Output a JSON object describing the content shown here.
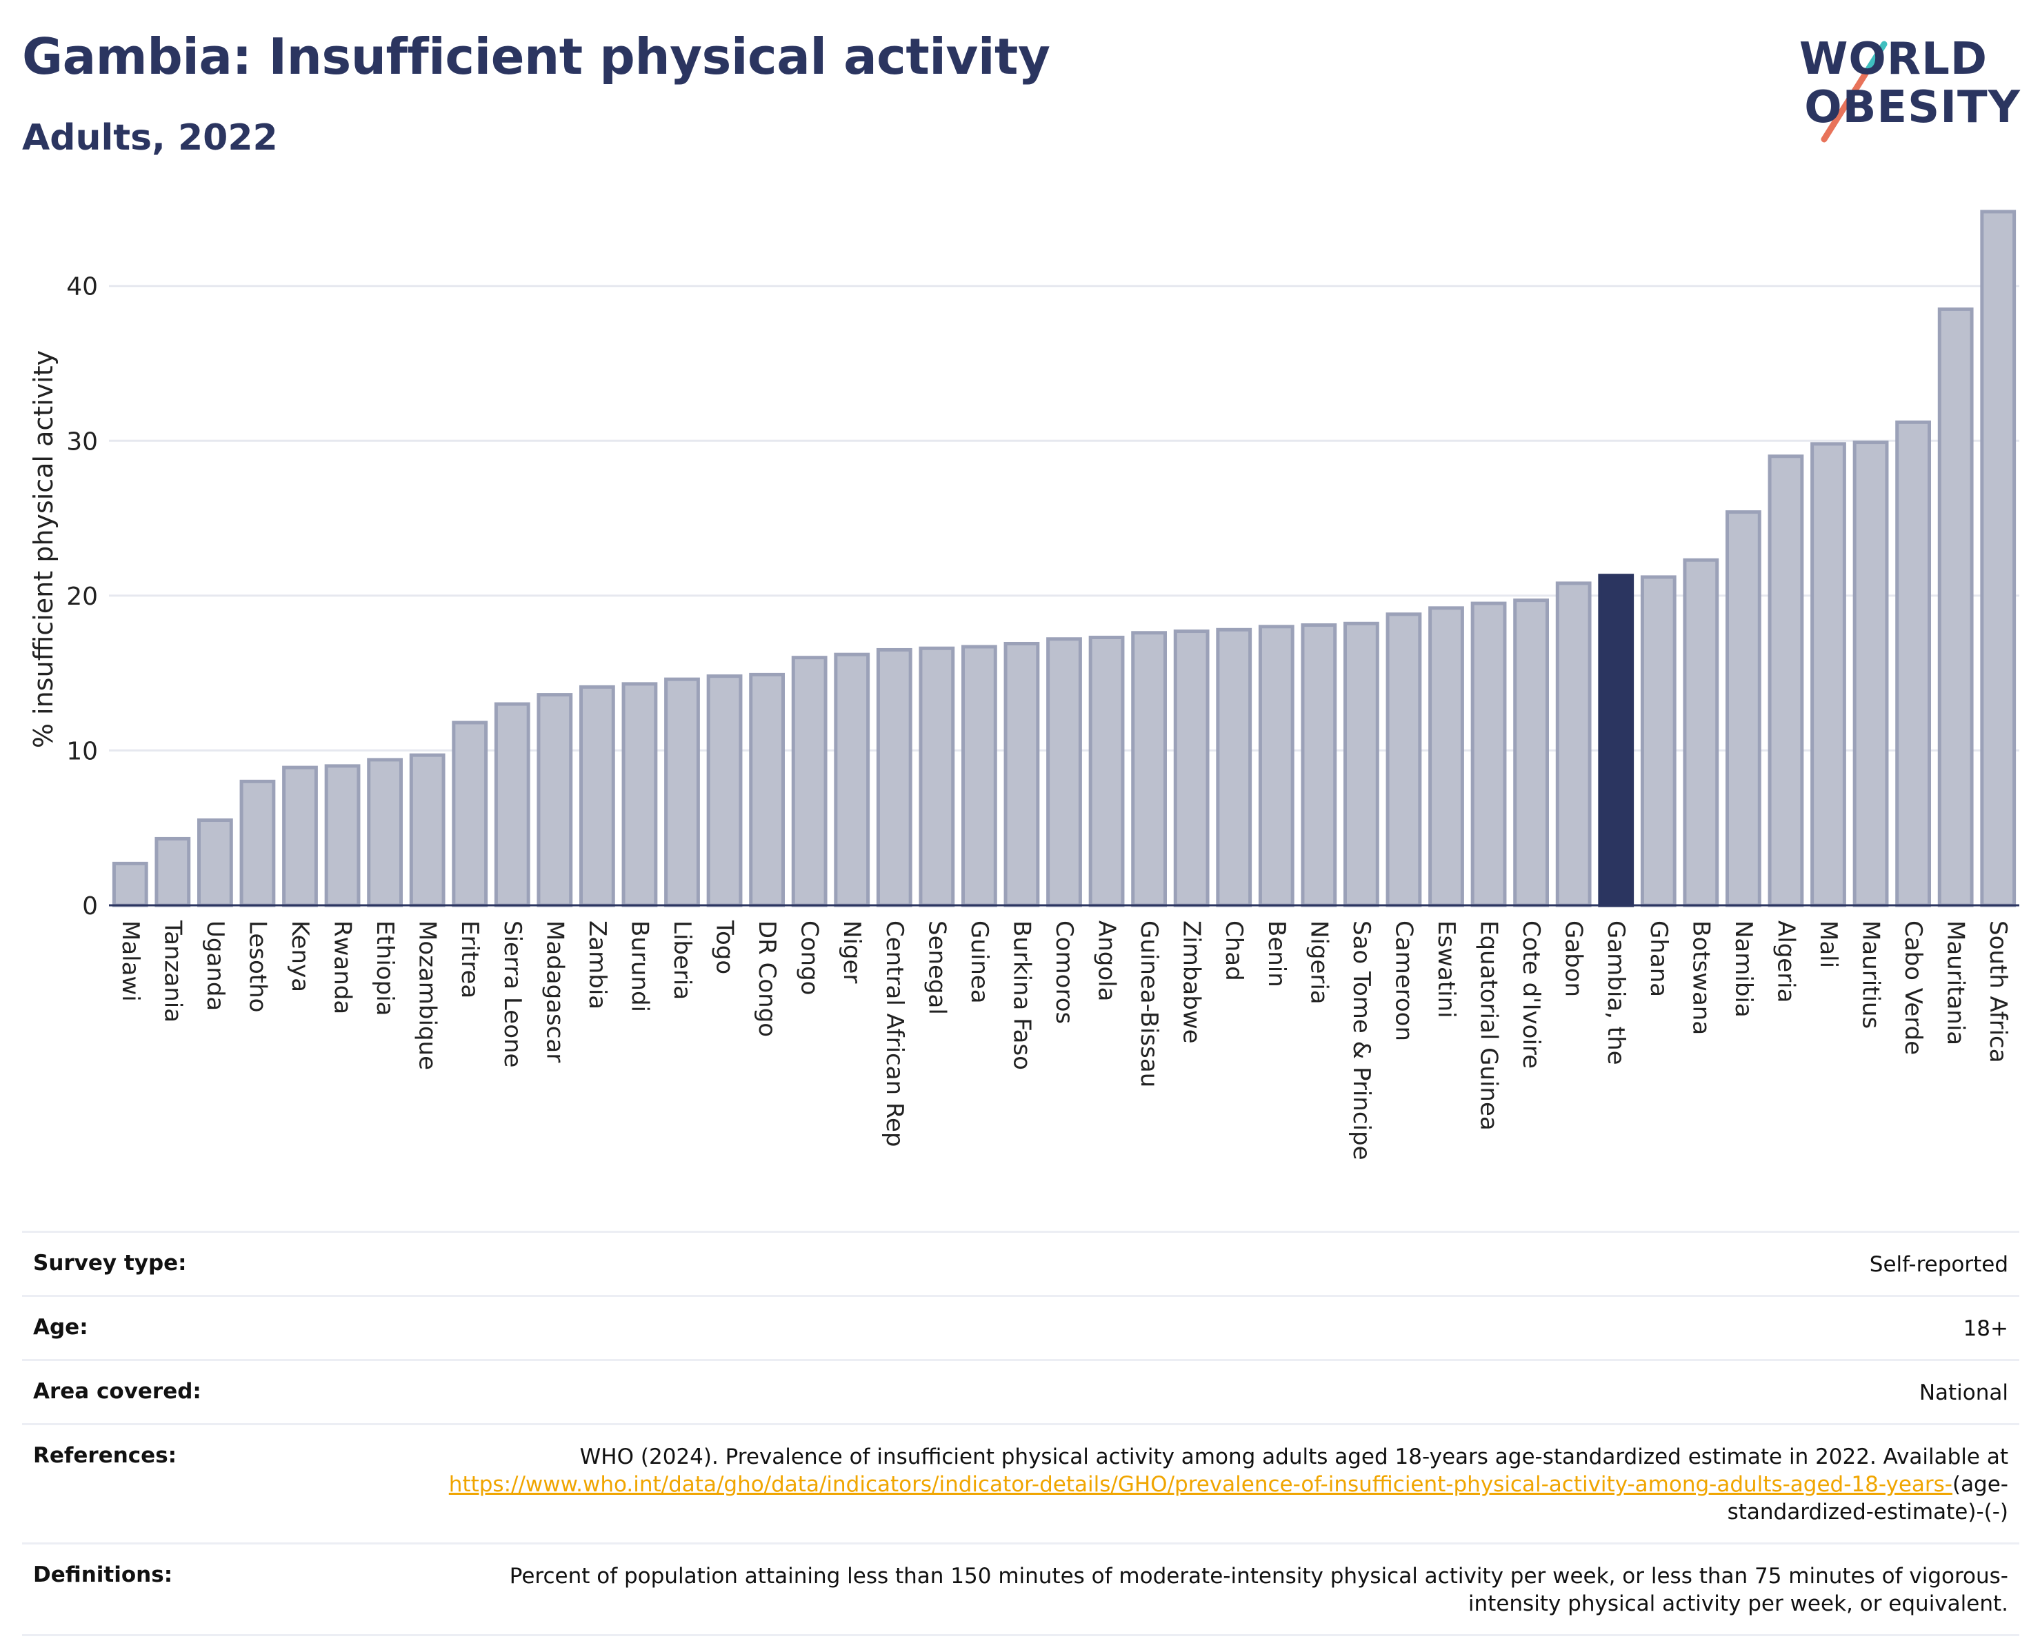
{
  "header": {
    "title": "Gambia: Insufficient physical activity",
    "subtitle": "Adults, 2022"
  },
  "logo": {
    "line1": "WORLD",
    "line2": "OBESITY",
    "text_color": "#2b3560",
    "slash_colors": [
      "#e8735a",
      "#3fbfbf"
    ]
  },
  "colors": {
    "bar_fill": "#bcc0ce",
    "bar_stroke": "#9ba1b8",
    "highlight_fill": "#2b3560",
    "grid": "#e6e8ef"
  },
  "chart_data": {
    "type": "bar",
    "ylabel": "% insufficient physical activity",
    "ylim": [
      0,
      46
    ],
    "yticks": [
      0,
      10,
      20,
      30,
      40
    ],
    "highlight": "Gambia, the",
    "grid": true,
    "categories": [
      "Malawi",
      "Tanzania",
      "Uganda",
      "Lesotho",
      "Kenya",
      "Rwanda",
      "Ethiopia",
      "Mozambique",
      "Eritrea",
      "Sierra Leone",
      "Madagascar",
      "Zambia",
      "Burundi",
      "Liberia",
      "Togo",
      "DR Congo",
      "Congo",
      "Niger",
      "Central African Rep",
      "Senegal",
      "Guinea",
      "Burkina Faso",
      "Comoros",
      "Angola",
      "Guinea-Bissau",
      "Zimbabwe",
      "Chad",
      "Benin",
      "Nigeria",
      "Sao Tome & Principe",
      "Cameroon",
      "Eswatini",
      "Equatorial Guinea",
      "Cote d'Ivoire",
      "Gabon",
      "Gambia, the",
      "Ghana",
      "Botswana",
      "Namibia",
      "Algeria",
      "Mali",
      "Mauritius",
      "Cabo Verde",
      "Mauritania",
      "South Africa"
    ],
    "values": [
      2.7,
      4.3,
      5.5,
      8.0,
      8.9,
      9.0,
      9.4,
      9.7,
      11.8,
      13.0,
      13.6,
      14.1,
      14.3,
      14.6,
      14.8,
      14.9,
      16.0,
      16.2,
      16.5,
      16.6,
      16.7,
      16.9,
      17.2,
      17.3,
      17.6,
      17.7,
      17.8,
      18.0,
      18.1,
      18.2,
      18.8,
      19.2,
      19.5,
      19.7,
      20.8,
      21.3,
      21.2,
      22.3,
      25.4,
      29.0,
      29.8,
      29.9,
      31.2,
      38.5,
      44.8
    ]
  },
  "details": [
    {
      "label": "Survey type:",
      "value": "Self-reported"
    },
    {
      "label": "Age:",
      "value": "18+"
    },
    {
      "label": "Area covered:",
      "value": "National"
    }
  ],
  "references": {
    "label": "References:",
    "text": "WHO (2024). Prevalence of insufficient physical activity among adults aged 18-years age-standardized estimate in 2022. Available at",
    "link": "https://www.who.int/data/gho/data/indicators/indicator-details/GHO/prevalence-of-insufficient-physical-activity-among-adults-aged-18-years-",
    "suffix": "(age-standardized-estimate)-(-)"
  },
  "definitions": {
    "label": "Definitions:",
    "text": "Percent of population attaining less than 150 minutes of moderate-intensity physical activity per week, or less than 75 minutes of vigorous-intensity physical activity per week, or equivalent."
  }
}
